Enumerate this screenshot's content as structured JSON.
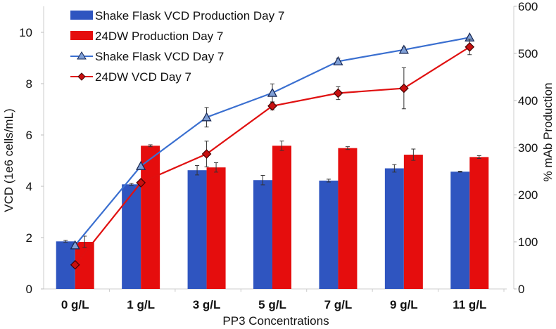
{
  "chart_data": {
    "type": "bar+line",
    "xlabel": "PP3 Concentrations",
    "ylabel": "VCD (1e6 cells/mL)",
    "y2label": "% mAb Production",
    "ylim": [
      0,
      10
    ],
    "y2lim": [
      0,
      600
    ],
    "yticks": [
      "0",
      "2",
      "4",
      "6",
      "8",
      "10"
    ],
    "y2ticks": [
      "0",
      "100",
      "200",
      "300",
      "400",
      "500",
      "600"
    ],
    "categories": [
      "0 g/L",
      "1 g/L",
      "3 g/L",
      "5 g/L",
      "7 g/L",
      "9 g/L",
      "11 g/L"
    ],
    "legend_position": "top-left",
    "series": [
      {
        "name": "Shake Flask VCD Production Day 7",
        "kind": "bar",
        "axis": "right",
        "color": "#2f55c0",
        "values": [
          101,
          222,
          252,
          231,
          230,
          256,
          249
        ],
        "errors": [
          2,
          2,
          10,
          10,
          3,
          8,
          1
        ]
      },
      {
        "name": "24DW Production Day 7",
        "kind": "bar",
        "axis": "right",
        "color": "#e50d0d",
        "values": [
          100,
          304,
          258,
          304,
          299,
          285,
          280
        ],
        "errors": [
          12,
          2,
          10,
          10,
          3,
          12,
          3
        ]
      },
      {
        "name": "Shake Flask VCD Day 7",
        "kind": "line",
        "marker": "triangle",
        "axis": "left",
        "color": "#3a6fd0",
        "values": [
          1.7,
          4.79,
          6.69,
          7.64,
          8.87,
          9.32,
          9.8
        ],
        "errors": [
          0.05,
          0.05,
          0.38,
          0.35,
          0.12,
          0.1,
          0.05
        ]
      },
      {
        "name": "24DW VCD Day 7",
        "kind": "line",
        "marker": "diamond",
        "axis": "left",
        "color": "#e01010",
        "values": [
          0.94,
          4.14,
          5.26,
          7.13,
          7.63,
          7.82,
          9.43
        ],
        "errors": [
          0.05,
          0.05,
          0.5,
          0.15,
          0.25,
          0.8,
          0.3
        ]
      }
    ]
  }
}
